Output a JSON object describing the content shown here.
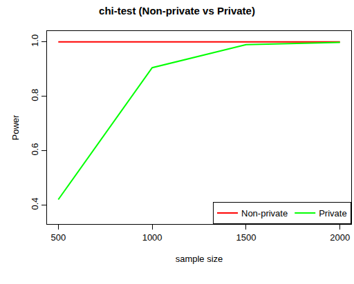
{
  "chart_data": {
    "type": "line",
    "title": "chi-test (Non-private vs Private)",
    "x_label": "sample size",
    "y_label": "Power",
    "x": [
      500,
      1000,
      1500,
      2000
    ],
    "series": [
      {
        "name": "Non-private",
        "color": "#ff0000",
        "values": [
          1.0,
          1.0,
          1.0,
          1.0
        ]
      },
      {
        "name": "Private",
        "color": "#00ff00",
        "values": [
          0.42,
          0.905,
          0.99,
          0.998
        ]
      }
    ],
    "xlim": [
      440,
      2060
    ],
    "xticks": [
      500,
      1000,
      1500,
      2000
    ],
    "ylim": [
      0.33,
      1.04
    ],
    "yticks": [
      0.4,
      0.6,
      0.8,
      {
        "value": 1,
        "label": "1.0"
      }
    ],
    "grid": false,
    "legend": "bottom right"
  }
}
